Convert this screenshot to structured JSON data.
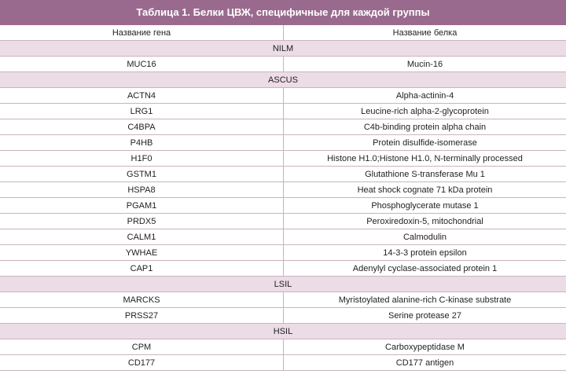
{
  "title": "Таблица 1. Белки ЦВЖ, специфичные для каждой группы",
  "table": {
    "header": [
      "Название гена",
      "Название белка"
    ],
    "sections": [
      {
        "group": "NILM",
        "rows": [
          [
            "MUC16",
            "Mucin-16"
          ]
        ]
      },
      {
        "group": "ASCUS",
        "rows": [
          [
            "ACTN4",
            "Alpha-actinin-4"
          ],
          [
            "LRG1",
            "Leucine-rich alpha-2-glycoprotein"
          ],
          [
            "C4BPA",
            "C4b-binding protein alpha chain"
          ],
          [
            "P4HB",
            "Protein disulfide-isomerase"
          ],
          [
            "H1F0",
            "Histone H1.0;Histone H1.0, N-terminally processed"
          ],
          [
            "GSTM1",
            "Glutathione S-transferase Mu 1"
          ],
          [
            "HSPA8",
            "Heat shock cognate 71 kDa protein"
          ],
          [
            "PGAM1",
            "Phosphoglycerate mutase 1"
          ],
          [
            "PRDX5",
            "Peroxiredoxin-5, mitochondrial"
          ],
          [
            "CALM1",
            "Calmodulin"
          ],
          [
            "YWHAE",
            "14-3-3 protein epsilon"
          ],
          [
            "CAP1",
            "Adenylyl cyclase-associated protein 1"
          ]
        ]
      },
      {
        "group": "LSIL",
        "rows": [
          [
            "MARCKS",
            "Myristoylated alanine-rich C-kinase substrate"
          ],
          [
            "PRSS27",
            "Serine protease 27"
          ]
        ]
      },
      {
        "group": "HSIL",
        "rows": [
          [
            "CPM",
            "Carboxypeptidase M"
          ],
          [
            "CD177",
            "CD177 antigen"
          ]
        ]
      }
    ]
  }
}
